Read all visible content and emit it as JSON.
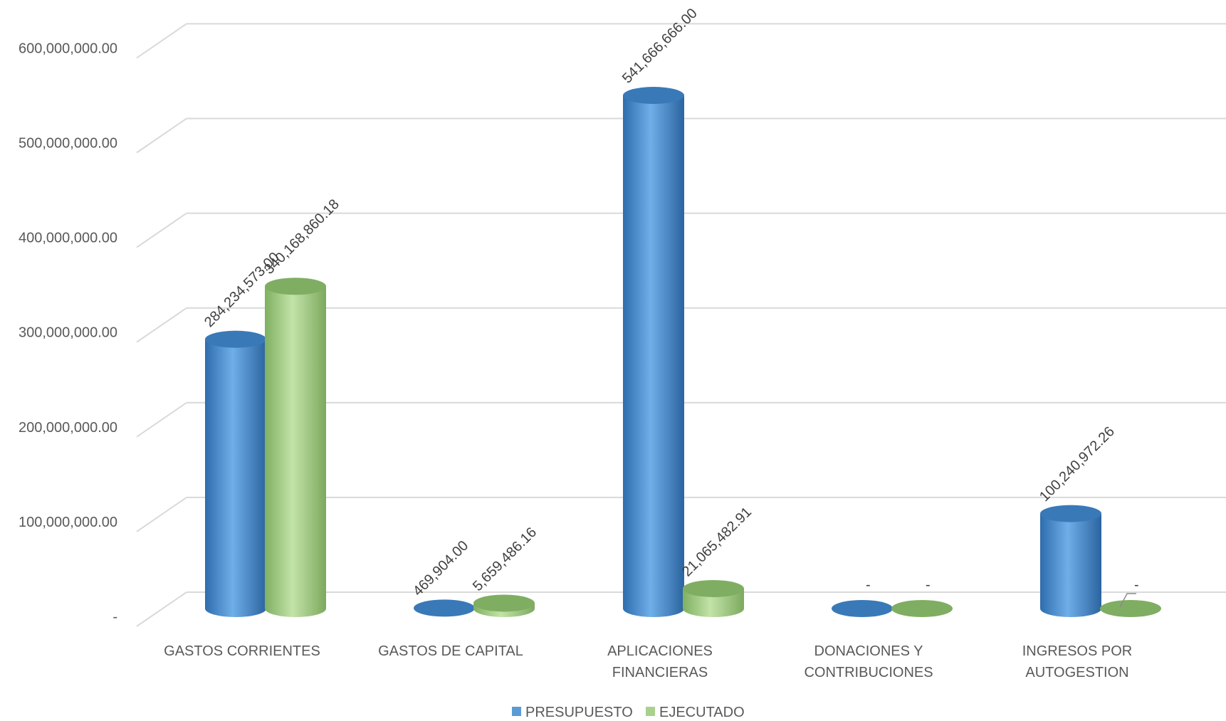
{
  "chart_data": {
    "type": "bar",
    "style": "3d-cylinder",
    "categories": [
      [
        "GASTOS CORRIENTES"
      ],
      [
        "GASTOS DE CAPITAL"
      ],
      [
        "APLICACIONES",
        "FINANCIERAS"
      ],
      [
        "DONACIONES Y",
        "CONTRIBUCIONES"
      ],
      [
        "INGRESOS POR",
        "AUTOGESTION"
      ]
    ],
    "series": [
      {
        "name": "PRESUPUESTO",
        "color": "#5B9BD5",
        "values": [
          284234573.0,
          469904.0,
          541666666.0,
          0,
          100240972.26
        ],
        "labels": [
          "284,234,573.00",
          "469,904.00",
          "541,666,666.00",
          "-",
          "100,240,972.26"
        ]
      },
      {
        "name": "EJECUTADO",
        "color": "#A9D18E",
        "values": [
          340168860.18,
          5659486.16,
          21065482.91,
          0,
          0
        ],
        "labels": [
          "340,168,860.18",
          "5,659,486.16",
          "21,065,482.91",
          "-",
          "-"
        ]
      }
    ],
    "yticks": [
      {
        "value": 0,
        "label": "-"
      },
      {
        "value": 100000000,
        "label": "100,000,000.00"
      },
      {
        "value": 200000000,
        "label": "200,000,000.00"
      },
      {
        "value": 300000000,
        "label": "300,000,000.00"
      },
      {
        "value": 400000000,
        "label": "400,000,000.00"
      },
      {
        "value": 500000000,
        "label": "500,000,000.00"
      },
      {
        "value": 600000000,
        "label": "600,000,000.00"
      }
    ],
    "ylim": [
      0,
      600000000
    ],
    "grid": true,
    "legend": "bottom"
  }
}
